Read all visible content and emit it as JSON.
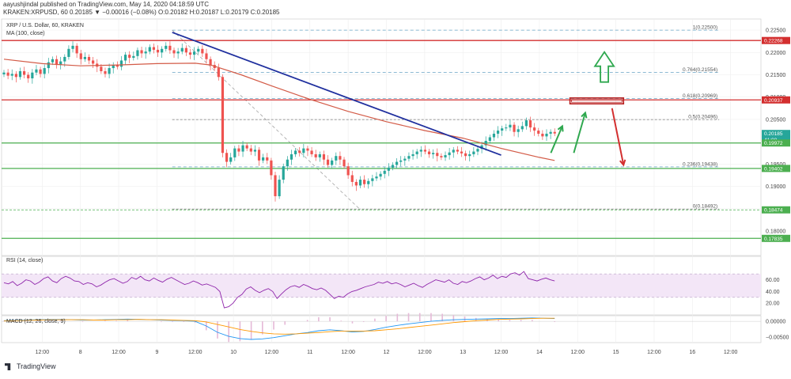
{
  "header": {
    "publisher": "aayushjindal published on TradingView.com, May 14, 2020 04:18:59 UTC",
    "quote": "KRAKEN:XRPUSD, 60  0.20185 ▼ −0.00016 (−0.08%) O:0.20182 H:0.20187 L:0.20179 C:0.20185",
    "symbol_desc": "XRP / U.S. Dollar, 60, KRAKEN",
    "ma_label": "MA (100, close)"
  },
  "footer": {
    "brand": "TradingView"
  },
  "colors": {
    "up": "#26a69a",
    "down": "#ef5350",
    "ma": "#d35b47",
    "trendline": "#1f2f9e",
    "support": "#4caf50",
    "resistance": "#d32f2f",
    "fib": "#67a3c5",
    "rsi": "#8e24aa",
    "macd": "#2196f3",
    "signal": "#ff9800",
    "hist": "#e5b9d7"
  },
  "chart_data": [
    {
      "type": "candlestick",
      "title": "XRP / U.S. Dollar, 60, KRAKEN",
      "ylim": [
        0.1745,
        0.2275
      ],
      "x_ticks": [
        "12:00",
        "8",
        "12:00",
        "9",
        "12:00",
        "10",
        "12:00",
        "11",
        "12:00",
        "12",
        "12:00",
        "13",
        "12:00",
        "14",
        "12:00",
        "15",
        "12:00",
        "16",
        "12:00"
      ],
      "x_tick_positions": [
        0.5,
        1,
        1.5,
        2,
        2.5,
        3,
        3.5,
        4,
        4.5,
        5,
        5.5,
        6,
        6.5,
        7,
        7.5,
        8,
        8.5,
        9,
        9.5
      ],
      "y_ticks": [
        0.225,
        0.22,
        0.215,
        0.21,
        0.205,
        0.2,
        0.195,
        0.19,
        0.185,
        0.18
      ],
      "y_tick_labels": [
        "0.22500",
        "0.22000",
        "0.21500",
        "0.21000",
        "0.20500",
        "0.20000",
        "0.19500",
        "0.19000",
        "0.18500",
        "0.18000"
      ],
      "price_tags": [
        {
          "value": 0.22268,
          "label": "0.22268",
          "color": "#d32f2f"
        },
        {
          "value": 0.20937,
          "label": "0.20937",
          "color": "#d32f2f"
        },
        {
          "value": 0.20185,
          "label": "0.20185",
          "color": "#26a69a"
        },
        {
          "value": 0.20045,
          "label": "41:08",
          "color": "#26a69a"
        },
        {
          "value": 0.19972,
          "label": "0.19972",
          "color": "#4caf50"
        },
        {
          "value": 0.19402,
          "label": "0.19402",
          "color": "#4caf50"
        },
        {
          "value": 0.18474,
          "label": "0.18474",
          "color": "#4caf50"
        },
        {
          "value": 0.17835,
          "label": "0.17835",
          "color": "#4caf50"
        }
      ],
      "horizontal_levels": [
        {
          "name": "resistance",
          "value": 0.22268,
          "style": "solid-red"
        },
        {
          "name": "resistance",
          "value": 0.20937,
          "style": "solid-red"
        },
        {
          "name": "support",
          "value": 0.19972,
          "style": "solid-green"
        },
        {
          "name": "support",
          "value": 0.19402,
          "style": "solid-green"
        },
        {
          "name": "support",
          "value": 0.17835,
          "style": "solid-green"
        },
        {
          "name": "support",
          "value": 0.18474,
          "style": "dashed-green"
        }
      ],
      "fib_levels": [
        {
          "label": "1(0.22500)",
          "value": 0.225
        },
        {
          "label": "0.764(0.21554)",
          "value": 0.21554
        },
        {
          "label": "0.618(0.20969)",
          "value": 0.20969
        },
        {
          "label": "0.5(0.20496)",
          "value": 0.20496
        },
        {
          "label": "0.236(0.19438)",
          "value": 0.19438
        },
        {
          "label": "0(0.18492)",
          "value": 0.18492
        }
      ],
      "fib_x_range": [
        2.2,
        9.35
      ],
      "fib_diagonal": {
        "from": [
          2.2,
          0.225
        ],
        "to": [
          4.65,
          0.18492
        ]
      },
      "trendline": {
        "from": [
          2.2,
          0.2245
        ],
        "to": [
          6.5,
          0.197
        ]
      },
      "closes": [
        0.2155,
        0.2148,
        0.2152,
        0.2145,
        0.2158,
        0.215,
        0.2142,
        0.2155,
        0.2162,
        0.2152,
        0.2165,
        0.2178,
        0.2185,
        0.2172,
        0.218,
        0.219,
        0.2208,
        0.2215,
        0.2198,
        0.2185,
        0.219,
        0.2182,
        0.2175,
        0.2168,
        0.2158,
        0.2152,
        0.2165,
        0.2172,
        0.2168,
        0.2182,
        0.2195,
        0.2188,
        0.2192,
        0.2205,
        0.2198,
        0.2202,
        0.2212,
        0.2206,
        0.22,
        0.2208,
        0.2215,
        0.2205,
        0.2198,
        0.2202,
        0.221,
        0.22,
        0.2195,
        0.2202,
        0.2208,
        0.2198,
        0.2185,
        0.2172,
        0.2165,
        0.2145,
        0.1975,
        0.1955,
        0.1965,
        0.1985,
        0.1978,
        0.1992,
        0.1985,
        0.1978,
        0.1982,
        0.1958,
        0.1965,
        0.1958,
        0.1925,
        0.1878,
        0.1915,
        0.1945,
        0.196,
        0.1972,
        0.198,
        0.1975,
        0.1985,
        0.198,
        0.1972,
        0.1965,
        0.1972,
        0.196,
        0.1948,
        0.1958,
        0.1968,
        0.196,
        0.1945,
        0.1925,
        0.191,
        0.1902,
        0.1915,
        0.1905,
        0.1912,
        0.1918,
        0.1922,
        0.1928,
        0.1935,
        0.1942,
        0.1948,
        0.1955,
        0.1958,
        0.1962,
        0.1968,
        0.1972,
        0.1978,
        0.1982,
        0.1978,
        0.1972,
        0.1975,
        0.1968,
        0.1965,
        0.197,
        0.1976,
        0.1982,
        0.1978,
        0.1974,
        0.1968,
        0.1972,
        0.1978,
        0.1984,
        0.1992,
        0.2002,
        0.201,
        0.2018,
        0.2025,
        0.203,
        0.2032,
        0.2038,
        0.2022,
        0.2028,
        0.2035,
        0.2048,
        0.2032,
        0.2025,
        0.2018,
        0.2012,
        0.2018,
        0.2022,
        0.20185
      ],
      "ma_100": [
        [
          0,
          0.2185
        ],
        [
          0.5,
          0.2175
        ],
        [
          1,
          0.217
        ],
        [
          1.5,
          0.2172
        ],
        [
          2,
          0.2175
        ],
        [
          2.5,
          0.2176
        ],
        [
          2.7,
          0.2172
        ],
        [
          3.1,
          0.215
        ],
        [
          3.5,
          0.2125
        ],
        [
          4,
          0.2095
        ],
        [
          4.5,
          0.2068
        ],
        [
          5,
          0.2045
        ],
        [
          5.5,
          0.2025
        ],
        [
          6,
          0.2008
        ],
        [
          6.5,
          0.1985
        ],
        [
          7,
          0.1965
        ],
        [
          7.2,
          0.1958
        ]
      ],
      "annotations": [
        {
          "type": "up-arrow-outline",
          "x": 7.85,
          "y": 0.2155
        },
        {
          "type": "box",
          "x": [
            7.4,
            8.1
          ],
          "y": [
            0.2085,
            0.2098
          ]
        },
        {
          "type": "arrow",
          "color": "green",
          "from": [
            7.15,
            0.1975
          ],
          "to": [
            7.3,
            0.2035
          ]
        },
        {
          "type": "arrow",
          "color": "green",
          "from": [
            7.45,
            0.1975
          ],
          "to": [
            7.6,
            0.2065
          ]
        },
        {
          "type": "arrow",
          "color": "red",
          "from": [
            7.95,
            0.2075
          ],
          "to": [
            8.1,
            0.1948
          ]
        }
      ]
    },
    {
      "type": "line",
      "title": "RSI (14, close)",
      "ylim": [
        0,
        100
      ],
      "band": [
        30,
        70
      ],
      "y_ticks": [
        60,
        40,
        20
      ],
      "y_tick_labels": [
        "60.00",
        "40.00",
        "20.00"
      ],
      "values": [
        55,
        53,
        57,
        50,
        54,
        60,
        58,
        52,
        56,
        62,
        65,
        58,
        55,
        62,
        66,
        63,
        58,
        57,
        52,
        55,
        53,
        48,
        51,
        56,
        60,
        62,
        58,
        54,
        57,
        64,
        61,
        66,
        60,
        58,
        63,
        59,
        56,
        61,
        64,
        60,
        56,
        52,
        54,
        58,
        55,
        51,
        53,
        50,
        47,
        40,
        12,
        14,
        20,
        30,
        35,
        44,
        48,
        42,
        38,
        42,
        45,
        40,
        28,
        36,
        43,
        48,
        50,
        47,
        52,
        49,
        45,
        43,
        46,
        42,
        35,
        28,
        32,
        30,
        36,
        40,
        42,
        45,
        48,
        50,
        52,
        56,
        54,
        57,
        53,
        55,
        52,
        48,
        51,
        54,
        50,
        47,
        52,
        56,
        60,
        58,
        56,
        60,
        54,
        52,
        57,
        55,
        58,
        62,
        65,
        60,
        63,
        68,
        62,
        66,
        64,
        70,
        72,
        68,
        74,
        62,
        60,
        58,
        61,
        63,
        60,
        58
      ]
    },
    {
      "type": "line",
      "title": "MACD (12, 26, close, 9)",
      "ylim": [
        -0.0068,
        0.0018
      ],
      "y_ticks": [
        0,
        -0.005
      ],
      "y_tick_labels": [
        "0.00000",
        "−0.00500"
      ],
      "macd": [
        0.0002,
        0.0003,
        0.0004,
        0.0005,
        0.0006,
        0.0006,
        0.0005,
        0.0004,
        0.0004,
        0.0005,
        0.0006,
        0.0007,
        0.0006,
        0.0005,
        0.0004,
        0.0003,
        0.0002,
        0.0,
        -0.0015,
        -0.0035,
        -0.0048,
        -0.0055,
        -0.0058,
        -0.0056,
        -0.0052,
        -0.0046,
        -0.004,
        -0.0036,
        -0.003,
        -0.0027,
        -0.003,
        -0.0034,
        -0.0032,
        -0.0026,
        -0.0019,
        -0.0013,
        -0.0008,
        -0.0004,
        0.0,
        0.0003,
        0.0005,
        0.0006,
        0.0007,
        0.0008,
        0.0009,
        0.0009,
        0.001,
        0.0011,
        0.001,
        0.0009
      ],
      "signal": [
        0.0001,
        0.0002,
        0.0003,
        0.0004,
        0.0005,
        0.0005,
        0.0005,
        0.0005,
        0.0004,
        0.0004,
        0.0005,
        0.0005,
        0.0006,
        0.0005,
        0.0005,
        0.0004,
        0.0003,
        0.0002,
        -0.0002,
        -0.001,
        -0.0018,
        -0.0026,
        -0.0032,
        -0.0037,
        -0.004,
        -0.0041,
        -0.004,
        -0.0038,
        -0.0036,
        -0.0033,
        -0.0031,
        -0.0031,
        -0.0031,
        -0.003,
        -0.0027,
        -0.0024,
        -0.002,
        -0.0016,
        -0.0012,
        -0.0008,
        -0.0004,
        -0.0001,
        0.0002,
        0.0004,
        0.0006,
        0.0007,
        0.0008,
        0.0009,
        0.001,
        0.001
      ]
    }
  ]
}
